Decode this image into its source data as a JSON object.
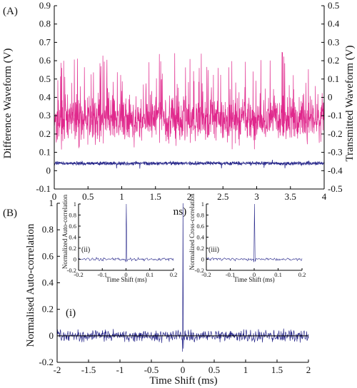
{
  "chart_data": [
    {
      "panel": "(A)",
      "type": "line",
      "xlabel": "Time (ms)",
      "ylabel_left": "Difference Waveform (V)",
      "ylabel_right": "Transmitted Waveform (V)",
      "xlim": [
        0,
        4
      ],
      "ylim_left": [
        -0.1,
        0.9
      ],
      "ylim_right": [
        -0.5,
        0.5
      ],
      "x_ticks": [
        "0",
        "0.5",
        "1",
        "1.5",
        "2",
        "2.5",
        "3",
        "3.5",
        "4"
      ],
      "y_ticks_left": [
        "-0.1",
        "0",
        "0.1",
        "0.2",
        "0.3",
        "0.4",
        "0.5",
        "0.6",
        "0.7",
        "0.8",
        "0.9"
      ],
      "y_ticks_right": [
        "-0.5",
        "-0.4",
        "-0.3",
        "-0.2",
        "-0.1",
        "0",
        "0.1",
        "0.2",
        "0.3",
        "0.4",
        "0.5"
      ],
      "series": [
        {
          "axis": "right",
          "color": "#e0288c",
          "baseline": -0.12,
          "min": -0.35,
          "max": 0.25,
          "points": 1200
        },
        {
          "axis": "left",
          "color": "#2a2a8c",
          "baseline": 0.04,
          "min": -0.02,
          "max": 0.08,
          "points": 1200
        }
      ],
      "grid": false
    },
    {
      "panel": "(B)",
      "type": "line",
      "tag": "(i)",
      "xlabel": "Time Shift (ms)",
      "ylabel": "Normalised Auto-correlation",
      "xlim": [
        -2,
        2
      ],
      "ylim": [
        -0.2,
        1
      ],
      "x_ticks": [
        "-2",
        "-1.5",
        "-1",
        "-0.5",
        "0",
        "0.5",
        "1",
        "1.5",
        "2"
      ],
      "y_ticks": [
        "-0.2",
        "0",
        "0.2",
        "0.4",
        "0.6",
        "0.8",
        "1"
      ],
      "series": [
        {
          "color": "#2a2a8c",
          "peak_x": 0,
          "peak_y": 1,
          "noise_min": -0.12,
          "noise_max": 0.08,
          "points": 700
        }
      ],
      "grid": false
    },
    {
      "panel": "(ii)",
      "type": "line",
      "tag": "(ii)",
      "xlabel": "Time Shift (ms)",
      "ylabel": "Normalized Auto-correlation",
      "xlim": [
        -0.2,
        0.2
      ],
      "ylim": [
        -0.2,
        1
      ],
      "x_ticks": [
        "-0.2",
        "-0.1",
        "0",
        "0.1",
        "0.2"
      ],
      "y_ticks": [
        "-0.2",
        "0",
        "0.2",
        "0.4",
        "0.6",
        "0.8",
        "1"
      ],
      "series": [
        {
          "color": "#2a2a8c",
          "peak_x": 0,
          "peak_y": 1,
          "noise_min": -0.05,
          "noise_max": 0.07,
          "points": 160
        }
      ]
    },
    {
      "panel": "(iii)",
      "type": "line",
      "tag": "(iii)",
      "xlabel": "Time Shift (ms)",
      "ylabel": "Normalized Cross-correlation",
      "xlim": [
        -0.2,
        0.2
      ],
      "ylim": [
        -0.2,
        1
      ],
      "x_ticks": [
        "-0.2",
        "-0.1",
        "0",
        "0.1",
        "0.2"
      ],
      "y_ticks": [
        "-0.2",
        "0",
        "0.2",
        "0.4",
        "0.6",
        "0.8",
        "1"
      ],
      "series": [
        {
          "color": "#2a2a8c",
          "peak_x": 0,
          "peak_y": 1,
          "noise_min": -0.05,
          "noise_max": 0.07,
          "points": 160
        }
      ]
    }
  ]
}
